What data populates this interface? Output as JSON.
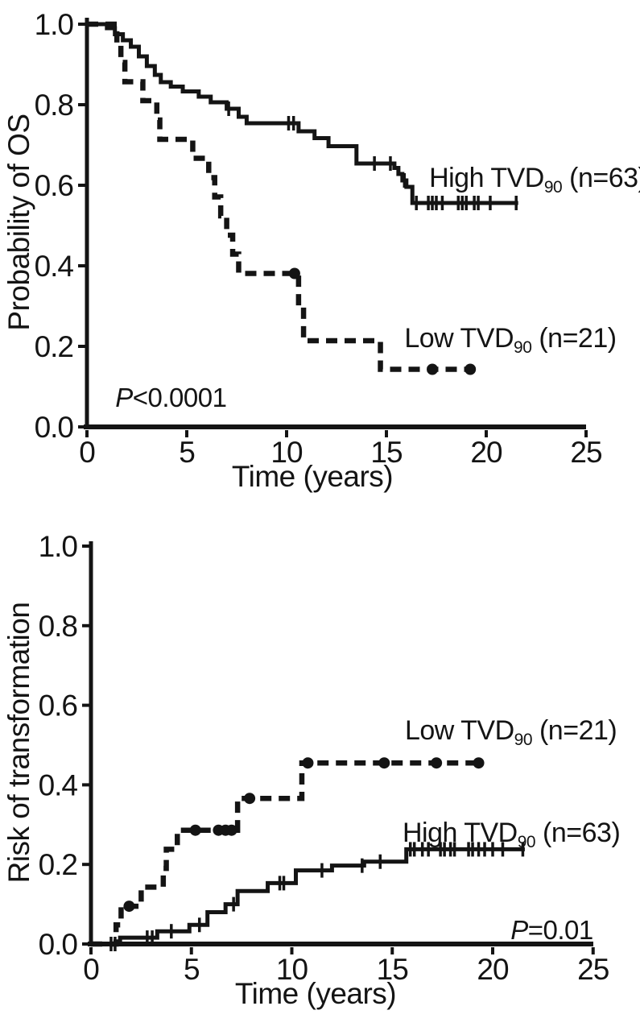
{
  "figure": {
    "background": "#ffffff",
    "ink": "#141414",
    "description": "Two stacked Kaplan-Meier style step plots"
  },
  "chart_data": [
    {
      "id": "overall-survival",
      "type": "line",
      "subtype": "kaplan-meier-step",
      "title": "",
      "ylabel": "Probability of OS",
      "xlabel": "Time (years)",
      "xlim": [
        0,
        25
      ],
      "ylim": [
        0,
        1.0
      ],
      "grid": false,
      "legend_position": "inline-annotations",
      "x_ticks": [
        0,
        5,
        10,
        15,
        20,
        25
      ],
      "y_ticks": [
        0,
        0.2,
        0.4,
        0.6,
        0.8,
        1.0
      ],
      "y_tick_labels": [
        "0.0",
        "0.2",
        "0.4",
        "0.6",
        "0.8",
        "1.0"
      ],
      "x_tick_labels": [
        "0",
        "5",
        "10",
        "15",
        "20",
        "25"
      ],
      "p_value": {
        "italic": "P",
        "text": "<0.0001",
        "t": 1.42,
        "y": 0.05,
        "anchor": "start"
      },
      "series": [
        {
          "key": "high",
          "name": "High TVD90",
          "n": 63,
          "label_prefix": "High TVD",
          "label_sub": "90",
          "label_suffix": " (n=63)",
          "line": "solid",
          "points": [
            [
              0,
              1.0
            ],
            [
              1.0,
              0.99
            ],
            [
              1.4,
              0.975
            ],
            [
              1.8,
              0.96
            ],
            [
              2.2,
              0.944
            ],
            [
              2.6,
              0.92
            ],
            [
              3.0,
              0.896
            ],
            [
              3.4,
              0.874
            ],
            [
              3.7,
              0.856
            ],
            [
              4.2,
              0.845
            ],
            [
              4.8,
              0.833
            ],
            [
              5.6,
              0.82
            ],
            [
              6.2,
              0.806
            ],
            [
              7.0,
              0.79
            ],
            [
              7.6,
              0.77
            ],
            [
              8.0,
              0.754
            ],
            [
              10.6,
              0.734
            ],
            [
              11.4,
              0.717
            ],
            [
              12.1,
              0.697
            ],
            [
              13.5,
              0.654
            ],
            [
              15.4,
              0.643
            ],
            [
              15.6,
              0.628
            ],
            [
              15.8,
              0.612
            ],
            [
              16.0,
              0.596
            ],
            [
              16.3,
              0.556
            ]
          ],
          "end_t": 21.6,
          "censor_times": [
            7.1,
            10.1,
            10.35,
            14.4,
            15.2,
            15.9,
            16.5,
            17.1,
            17.3,
            17.5,
            17.8,
            18.6,
            18.8,
            19.0,
            19.4,
            19.6,
            20.2,
            21.5
          ],
          "dot_times": [],
          "label_pos": {
            "t": 17.14,
            "y": 0.596
          }
        },
        {
          "key": "low",
          "name": "Low TVD90",
          "n": 21,
          "label_prefix": "Low TVD",
          "label_sub": "90",
          "label_suffix": " (n=21)",
          "line": "dashed",
          "points": [
            [
              0,
              1.0
            ],
            [
              1.5,
              0.952
            ],
            [
              1.7,
              0.905
            ],
            [
              1.9,
              0.857
            ],
            [
              2.8,
              0.81
            ],
            [
              3.5,
              0.762
            ],
            [
              3.65,
              0.714
            ],
            [
              5.3,
              0.667
            ],
            [
              6.1,
              0.619
            ],
            [
              6.4,
              0.571
            ],
            [
              6.7,
              0.524
            ],
            [
              7.0,
              0.476
            ],
            [
              7.3,
              0.429
            ],
            [
              7.6,
              0.381
            ],
            [
              10.6,
              0.3
            ],
            [
              10.85,
              0.214
            ],
            [
              14.7,
              0.143
            ]
          ],
          "end_t": 19.6,
          "censor_times": [],
          "dot_times": [
            10.4,
            17.3,
            19.2
          ],
          "label_pos": {
            "t": 15.9,
            "y": 0.198
          }
        }
      ]
    },
    {
      "id": "risk-of-transformation",
      "type": "line",
      "subtype": "kaplan-meier-step",
      "title": "",
      "ylabel": "Risk of transformation",
      "xlabel": "Time (years)",
      "xlim": [
        0,
        25
      ],
      "ylim": [
        0,
        1.0
      ],
      "grid": false,
      "legend_position": "inline-annotations",
      "x_ticks": [
        0,
        5,
        10,
        15,
        20,
        25
      ],
      "y_ticks": [
        0,
        0.2,
        0.4,
        0.6,
        0.8,
        1.0
      ],
      "y_tick_labels": [
        "0.0",
        "0.2",
        "0.4",
        "0.6",
        "0.8",
        "1.0"
      ],
      "x_tick_labels": [
        "0",
        "5",
        "10",
        "15",
        "20",
        "25"
      ],
      "p_value": {
        "italic": "P",
        "text": "=0.01",
        "t": 25.0,
        "y": 0.012,
        "anchor": "end"
      },
      "series": [
        {
          "key": "low",
          "name": "Low TVD90",
          "n": 21,
          "label_prefix": "Low TVD",
          "label_sub": "90",
          "label_suffix": " (n=21)",
          "line": "dashed",
          "points": [
            [
              0,
              0
            ],
            [
              1.25,
              0.048
            ],
            [
              1.5,
              0.095
            ],
            [
              2.5,
              0.143
            ],
            [
              3.6,
              0.19
            ],
            [
              3.75,
              0.238
            ],
            [
              4.3,
              0.286
            ],
            [
              7.3,
              0.366
            ],
            [
              10.5,
              0.455
            ]
          ],
          "end_t": 19.5,
          "censor_times": [],
          "dot_times": [
            1.9,
            5.2,
            6.35,
            6.7,
            7.0,
            7.9,
            10.8,
            14.6,
            17.2,
            19.3
          ],
          "label_pos": {
            "t": 15.63,
            "y": 0.514
          }
        },
        {
          "key": "high",
          "name": "High TVD90",
          "n": 63,
          "label_prefix": "High TVD",
          "label_sub": "90",
          "label_suffix": " (n=63)",
          "line": "solid",
          "points": [
            [
              0,
              0
            ],
            [
              1.45,
              0.016
            ],
            [
              3.3,
              0.032
            ],
            [
              4.9,
              0.048
            ],
            [
              5.8,
              0.08
            ],
            [
              6.7,
              0.1
            ],
            [
              7.3,
              0.133
            ],
            [
              8.8,
              0.153
            ],
            [
              10.2,
              0.185
            ],
            [
              12.0,
              0.197
            ],
            [
              13.6,
              0.207
            ],
            [
              15.7,
              0.238
            ]
          ],
          "end_t": 21.6,
          "censor_times": [
            1.0,
            1.2,
            2.8,
            3.05,
            4.0,
            5.4,
            7.1,
            9.4,
            9.6,
            11.5,
            13.5,
            14.4,
            15.9,
            16.1,
            16.5,
            16.8,
            17.4,
            17.6,
            17.9,
            18.1,
            18.8,
            19.0,
            19.3,
            19.6,
            20.0,
            20.5,
            21.5
          ],
          "dot_times": [],
          "label_pos": {
            "t": 15.51,
            "y": 0.257
          }
        }
      ]
    }
  ]
}
